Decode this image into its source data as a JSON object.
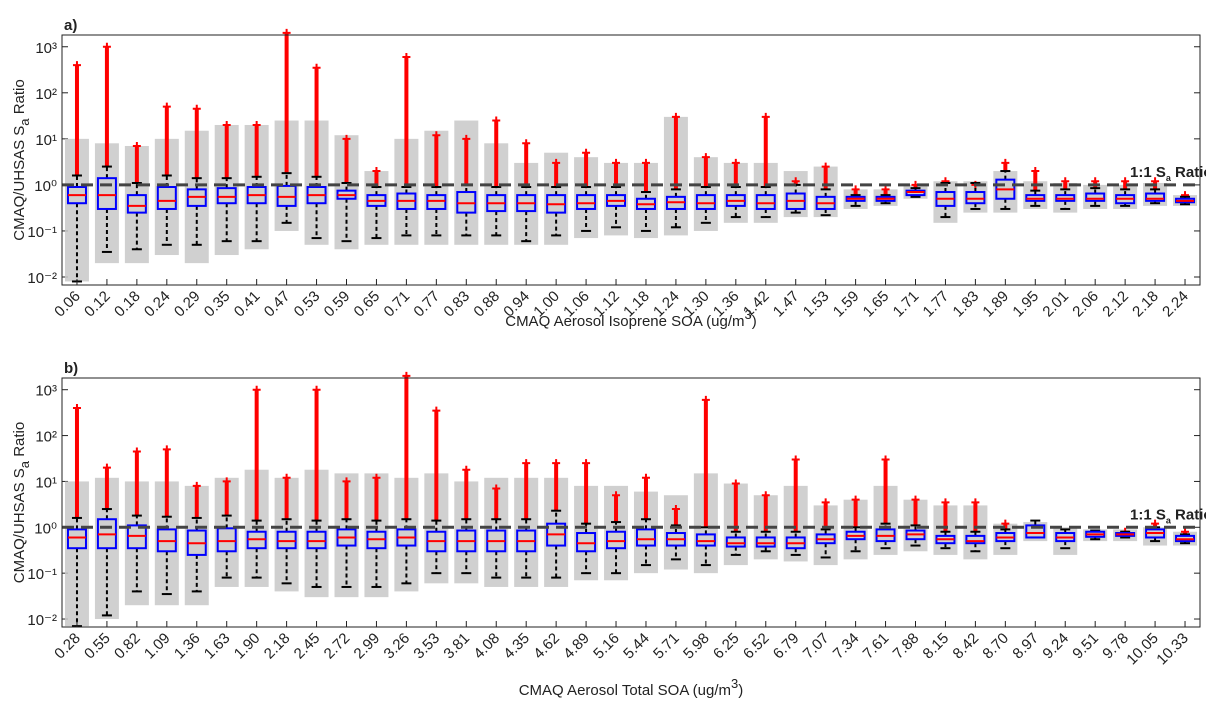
{
  "chart_data": [
    {
      "type": "box",
      "panel_label": "a)",
      "ylabel": {
        "text": "CMAQ/UHSAS S",
        "sub": "a",
        "rest": " Ratio"
      },
      "xlabel": {
        "text": "CMAQ Aerosol Isoprene SOA (ug/m",
        "sup": "3",
        "rest": ")"
      },
      "annotation": {
        "text": "1:1 S",
        "sub": "a",
        "rest": " Ratio",
        "y": 1
      },
      "categories": [
        "0.06",
        "0.12",
        "0.18",
        "0.24",
        "0.29",
        "0.35",
        "0.41",
        "0.47",
        "0.53",
        "0.59",
        "0.65",
        "0.71",
        "0.77",
        "0.83",
        "0.88",
        "0.94",
        "1.00",
        "1.06",
        "1.12",
        "1.18",
        "1.24",
        "1.30",
        "1.36",
        "1.42",
        "1.47",
        "1.53",
        "1.59",
        "1.65",
        "1.71",
        "1.77",
        "1.83",
        "1.89",
        "1.95",
        "2.01",
        "2.06",
        "2.12",
        "2.18",
        "2.24"
      ],
      "whislo": [
        0.008,
        0.035,
        0.04,
        0.05,
        0.05,
        0.06,
        0.06,
        0.15,
        0.07,
        0.06,
        0.07,
        0.08,
        0.08,
        0.08,
        0.08,
        0.06,
        0.08,
        0.1,
        0.12,
        0.1,
        0.12,
        0.15,
        0.2,
        0.2,
        0.25,
        0.22,
        0.35,
        0.4,
        0.55,
        0.2,
        0.3,
        0.3,
        0.35,
        0.3,
        0.35,
        0.35,
        0.4,
        0.38
      ],
      "q1": [
        0.4,
        0.3,
        0.25,
        0.3,
        0.35,
        0.4,
        0.4,
        0.35,
        0.4,
        0.5,
        0.35,
        0.3,
        0.3,
        0.25,
        0.27,
        0.27,
        0.25,
        0.3,
        0.35,
        0.3,
        0.3,
        0.3,
        0.35,
        0.3,
        0.3,
        0.3,
        0.45,
        0.45,
        0.6,
        0.35,
        0.4,
        0.5,
        0.45,
        0.45,
        0.45,
        0.4,
        0.45,
        0.42
      ],
      "median": [
        0.6,
        0.6,
        0.35,
        0.45,
        0.55,
        0.55,
        0.6,
        0.55,
        0.6,
        0.6,
        0.45,
        0.45,
        0.45,
        0.4,
        0.4,
        0.4,
        0.38,
        0.4,
        0.45,
        0.38,
        0.42,
        0.4,
        0.45,
        0.4,
        0.45,
        0.4,
        0.5,
        0.5,
        0.7,
        0.5,
        0.5,
        0.8,
        0.5,
        0.5,
        0.5,
        0.5,
        0.5,
        0.45
      ],
      "q3": [
        0.9,
        1.4,
        0.6,
        0.9,
        0.8,
        0.85,
        0.9,
        0.95,
        0.9,
        0.75,
        0.6,
        0.65,
        0.6,
        0.7,
        0.6,
        0.6,
        0.6,
        0.6,
        0.6,
        0.5,
        0.55,
        0.6,
        0.6,
        0.6,
        0.65,
        0.55,
        0.55,
        0.55,
        0.75,
        0.7,
        0.7,
        1.3,
        0.6,
        0.6,
        0.65,
        0.6,
        0.65,
        0.5
      ],
      "whishi": [
        1.6,
        2.5,
        1.1,
        1.6,
        1.4,
        1.4,
        1.5,
        1.8,
        1.5,
        1.1,
        0.9,
        0.9,
        0.9,
        1,
        0.9,
        0.9,
        0.9,
        0.9,
        0.9,
        0.7,
        0.8,
        0.9,
        0.9,
        0.9,
        1,
        0.8,
        0.6,
        0.6,
        0.85,
        1.1,
        1.1,
        2,
        0.75,
        0.8,
        0.85,
        0.8,
        0.8,
        0.55
      ],
      "outlier_max": [
        400,
        1000,
        7,
        50,
        45,
        20,
        20,
        2000,
        350,
        10,
        2,
        600,
        12,
        10,
        25,
        8,
        3,
        5,
        3,
        3,
        30,
        4,
        3,
        30,
        1.2,
        2.5,
        0.8,
        0.8,
        1.0,
        1.2,
        1.0,
        3,
        2,
        1.2,
        1.2,
        1.2,
        1.2,
        0.6
      ],
      "cloud_min": [
        0.008,
        0.02,
        0.02,
        0.03,
        0.02,
        0.03,
        0.04,
        0.1,
        0.05,
        0.04,
        0.05,
        0.05,
        0.05,
        0.05,
        0.05,
        0.05,
        0.05,
        0.07,
        0.08,
        0.07,
        0.08,
        0.1,
        0.15,
        0.15,
        0.2,
        0.2,
        0.3,
        0.35,
        0.5,
        0.15,
        0.25,
        0.25,
        0.3,
        0.25,
        0.3,
        0.3,
        0.35,
        0.35
      ],
      "cloud_max": [
        10,
        8,
        7,
        10,
        15,
        20,
        20,
        25,
        25,
        12,
        2,
        10,
        15,
        25,
        8,
        3,
        5,
        4,
        3,
        3,
        30,
        4,
        3,
        3,
        2,
        2.5,
        0.8,
        0.8,
        1,
        1.2,
        1.2,
        2,
        1.2,
        1.1,
        1,
        1,
        1.1,
        0.6
      ],
      "box_color": "#0000ff",
      "median_color": "#ff0000",
      "outlier_color": "#ff0000",
      "cloud_color": "#c8c8c8",
      "log_y": true,
      "ylim": [
        0.0067,
        1800
      ],
      "yticks": [
        {
          "value": 0.01,
          "label": "10⁻²"
        },
        {
          "value": 0.1,
          "label": "10⁻¹"
        },
        {
          "value": 1,
          "label": "10⁰"
        },
        {
          "value": 10,
          "label": "10¹"
        },
        {
          "value": 100,
          "label": "10²"
        },
        {
          "value": 1000,
          "label": "10³"
        }
      ]
    },
    {
      "type": "box",
      "panel_label": "b)",
      "ylabel": {
        "text": "CMAQ/UHSAS S",
        "sub": "a",
        "rest": " Ratio"
      },
      "xlabel": {
        "text": "CMAQ Aerosol Total SOA (ug/m",
        "sup": "3",
        "rest": ")"
      },
      "annotation": {
        "text": "1:1 S",
        "sub": "a",
        "rest": " Ratio",
        "y": 1
      },
      "categories": [
        "0.28",
        "0.55",
        "0.82",
        "1.09",
        "1.36",
        "1.63",
        "1.90",
        "2.18",
        "2.45",
        "2.72",
        "2.99",
        "3.26",
        "3.53",
        "3.81",
        "4.08",
        "4.35",
        "4.62",
        "4.89",
        "5.16",
        "5.44",
        "5.71",
        "5.98",
        "6.25",
        "6.52",
        "6.79",
        "7.07",
        "7.34",
        "7.61",
        "7.88",
        "8.15",
        "8.42",
        "8.70",
        "8.97",
        "9.24",
        "9.51",
        "9.78",
        "10.05",
        "10.33"
      ],
      "whislo": [
        0.007,
        0.012,
        0.04,
        0.035,
        0.04,
        0.08,
        0.08,
        0.06,
        0.05,
        0.05,
        0.05,
        0.06,
        0.1,
        0.1,
        0.08,
        0.08,
        0.08,
        0.1,
        0.1,
        0.15,
        0.2,
        0.15,
        0.25,
        0.3,
        0.25,
        0.22,
        0.3,
        0.35,
        0.4,
        0.35,
        0.3,
        0.35,
        0.6,
        0.35,
        0.55,
        0.6,
        0.5,
        0.45
      ],
      "q1": [
        0.35,
        0.35,
        0.35,
        0.3,
        0.25,
        0.3,
        0.35,
        0.35,
        0.35,
        0.4,
        0.35,
        0.4,
        0.3,
        0.3,
        0.3,
        0.3,
        0.4,
        0.3,
        0.35,
        0.4,
        0.4,
        0.4,
        0.38,
        0.38,
        0.35,
        0.45,
        0.55,
        0.5,
        0.55,
        0.45,
        0.45,
        0.5,
        0.6,
        0.5,
        0.62,
        0.65,
        0.6,
        0.5
      ],
      "median": [
        0.6,
        0.7,
        0.65,
        0.5,
        0.45,
        0.5,
        0.55,
        0.5,
        0.5,
        0.6,
        0.55,
        0.6,
        0.5,
        0.5,
        0.5,
        0.5,
        0.7,
        0.45,
        0.5,
        0.55,
        0.55,
        0.5,
        0.45,
        0.45,
        0.45,
        0.55,
        0.65,
        0.65,
        0.7,
        0.55,
        0.5,
        0.6,
        0.75,
        0.6,
        0.7,
        0.7,
        0.75,
        0.55
      ],
      "q3": [
        0.9,
        1.5,
        1.1,
        0.9,
        0.85,
        0.95,
        0.8,
        0.8,
        0.8,
        0.9,
        0.8,
        0.9,
        0.8,
        0.85,
        0.85,
        0.85,
        1.2,
        0.75,
        0.8,
        0.9,
        0.75,
        0.7,
        0.6,
        0.6,
        0.6,
        0.7,
        0.8,
        0.9,
        0.85,
        0.65,
        0.65,
        0.75,
        1.1,
        0.75,
        0.8,
        0.75,
        0.9,
        0.65
      ],
      "whishi": [
        1.6,
        2.5,
        1.8,
        1.7,
        1.6,
        1.8,
        1.4,
        1.5,
        1.4,
        1.5,
        1.4,
        1.5,
        1.4,
        1.5,
        1.5,
        1.5,
        2.3,
        1.2,
        1.3,
        1.5,
        1.1,
        1.0,
        0.8,
        0.8,
        0.8,
        0.9,
        1.0,
        1.2,
        1.1,
        0.8,
        0.8,
        0.9,
        1.4,
        0.9,
        0.85,
        0.8,
        1.0,
        0.7
      ],
      "outlier_max": [
        400,
        20,
        45,
        50,
        8,
        10,
        1000,
        12,
        1000,
        10,
        12,
        2000,
        350,
        18,
        7,
        25,
        25,
        25,
        5,
        12,
        2.5,
        600,
        9,
        5,
        30,
        3.5,
        4,
        30,
        4,
        3.5,
        3.5,
        1.2,
        null,
        null,
        null,
        0.8,
        1.2,
        0.8
      ],
      "cloud_min": [
        0.007,
        0.01,
        0.02,
        0.02,
        0.02,
        0.05,
        0.05,
        0.04,
        0.03,
        0.03,
        0.03,
        0.04,
        0.06,
        0.06,
        0.05,
        0.05,
        0.05,
        0.07,
        0.07,
        0.1,
        0.12,
        0.1,
        0.15,
        0.2,
        0.18,
        0.15,
        0.2,
        0.25,
        0.3,
        0.25,
        0.2,
        0.25,
        0.5,
        0.25,
        0.5,
        0.5,
        0.4,
        0.4
      ],
      "cloud_max": [
        10,
        12,
        10,
        10,
        8,
        12,
        18,
        12,
        18,
        15,
        15,
        12,
        15,
        10,
        12,
        12,
        12,
        8,
        8,
        6,
        5,
        15,
        9,
        5,
        8,
        3,
        4,
        8,
        4,
        3,
        3,
        1.2,
        1.3,
        1,
        0.9,
        0.9,
        1,
        0.8
      ],
      "box_color": "#0000ff",
      "median_color": "#ff0000",
      "outlier_color": "#ff0000",
      "cloud_color": "#c8c8c8",
      "log_y": true,
      "ylim": [
        0.0067,
        1800
      ],
      "yticks": [
        {
          "value": 0.01,
          "label": "10⁻²"
        },
        {
          "value": 0.1,
          "label": "10⁻¹"
        },
        {
          "value": 1,
          "label": "10⁰"
        },
        {
          "value": 10,
          "label": "10¹"
        },
        {
          "value": 100,
          "label": "10²"
        },
        {
          "value": 1000,
          "label": "10³"
        }
      ]
    }
  ]
}
